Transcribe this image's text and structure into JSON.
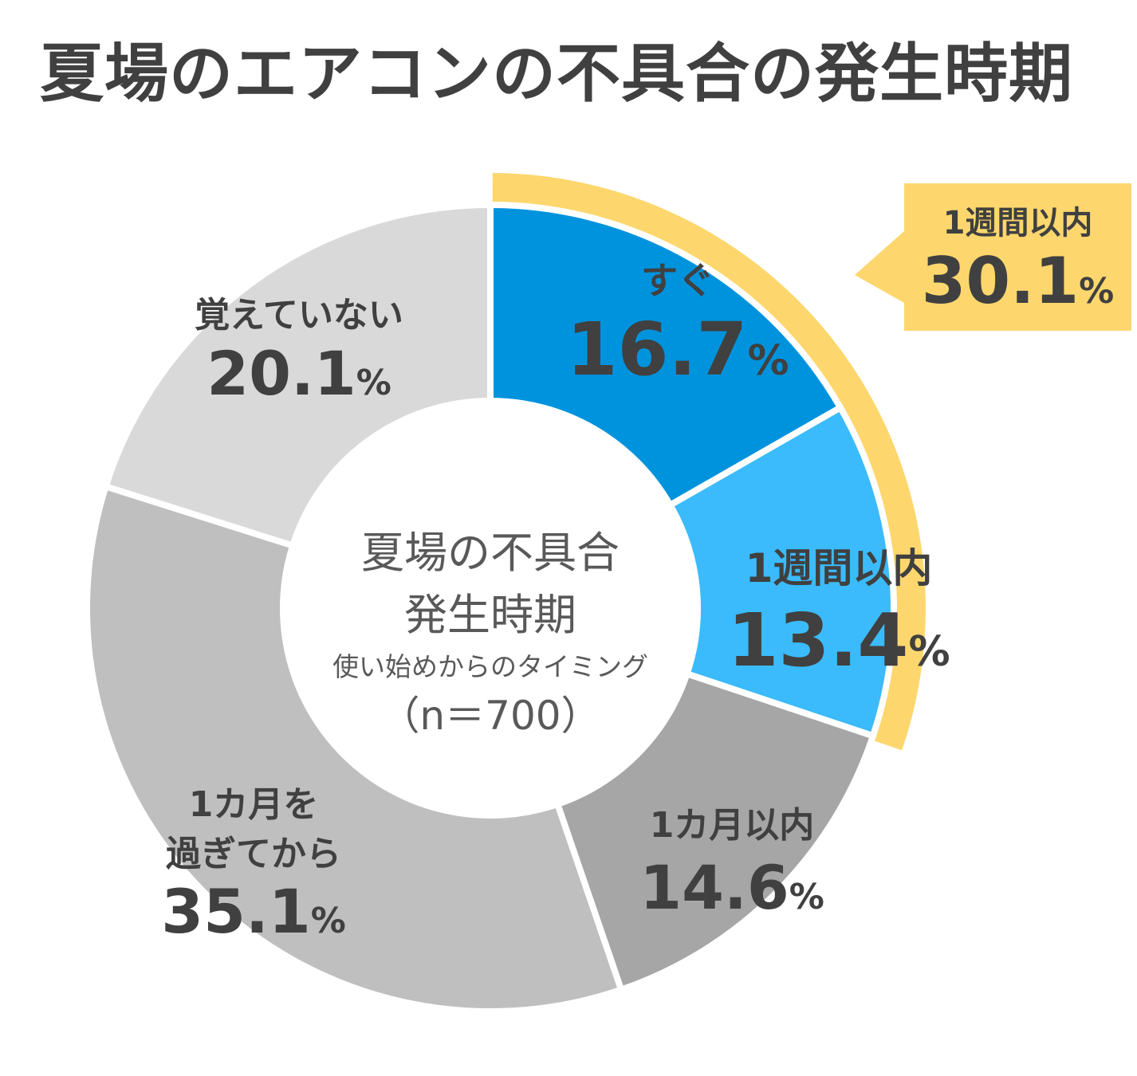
{
  "chart_data": {
    "type": "donut",
    "title": "夏場のエアコンの不具合の発生時期",
    "center": {
      "line1": "夏場の不具合",
      "line2": "発生時期",
      "line3": "使い始めからのタイミング",
      "line4": "（n＝700）"
    },
    "segments": [
      {
        "id": "sugu",
        "label": [
          "すぐ"
        ],
        "value": 16.7,
        "value_text": "16.7",
        "unit": "%",
        "color": "#0093DD"
      },
      {
        "id": "week",
        "label": [
          "1週間以内"
        ],
        "value": 13.4,
        "value_text": "13.4",
        "unit": "%",
        "color": "#3BBBFB"
      },
      {
        "id": "month",
        "label": [
          "1カ月以内"
        ],
        "value": 14.6,
        "value_text": "14.6",
        "unit": "%",
        "color": "#A6A6A6"
      },
      {
        "id": "after-month",
        "label": [
          "1カ月を",
          "過ぎてから"
        ],
        "value": 35.1,
        "value_text": "35.1",
        "unit": "%",
        "color": "#BFBFBF"
      },
      {
        "id": "unknown",
        "label": [
          "覚えていない"
        ],
        "value": 20.1,
        "value_text": "20.1",
        "unit": "%",
        "color": "#D9D9D9"
      }
    ],
    "highlight": {
      "label": "1週間以内",
      "value": 30.1,
      "value_text": "30.1",
      "unit": "%",
      "color": "#FDD76D",
      "covers": [
        "sugu",
        "week"
      ]
    }
  }
}
